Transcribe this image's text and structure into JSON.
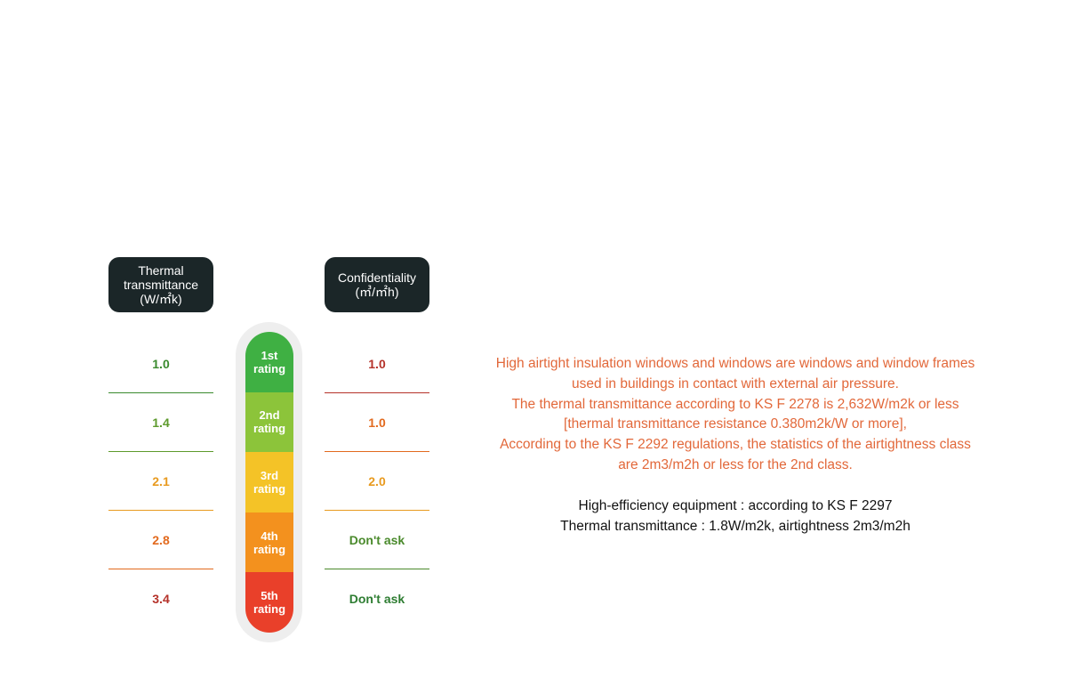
{
  "left_header": [
    "Thermal",
    "transmittance",
    "(W/㎡k)"
  ],
  "right_header": [
    "Confidentiality",
    "(㎥/㎡h)"
  ],
  "left_values": [
    {
      "text": "1.0",
      "color": "#3a8a2e"
    },
    {
      "text": "1.4",
      "color": "#5d9a2c"
    },
    {
      "text": "2.1",
      "color": "#e89a1f"
    },
    {
      "text": "2.8",
      "color": "#e26a1e"
    },
    {
      "text": "3.4",
      "color": "#b5322a"
    }
  ],
  "right_values": [
    {
      "text": "1.0",
      "color": "#b5322a"
    },
    {
      "text": "1.0",
      "color": "#e26a1e"
    },
    {
      "text": "2.0",
      "color": "#e89a1f"
    },
    {
      "text": "Don't ask",
      "color": "#4a8a2c"
    },
    {
      "text": "Don't ask",
      "color": "#2e7d32"
    }
  ],
  "ratings": [
    {
      "line1": "1st",
      "line2": "rating",
      "color": "#3fb043"
    },
    {
      "line1": "2nd",
      "line2": "rating",
      "color": "#8cc43a"
    },
    {
      "line1": "3rd",
      "line2": "rating",
      "color": "#f4c327"
    },
    {
      "line1": "4th",
      "line2": "rating",
      "color": "#f3911e"
    },
    {
      "line1": "5th",
      "line2": "rating",
      "color": "#e9402a"
    }
  ],
  "description": [
    "High airtight insulation windows and windows are windows and window frames",
    "used in buildings in contact with external air pressure.",
    "The thermal transmittance according to KS F 2278 is 2,632W/m2k or less",
    "[thermal transmittance resistance 0.380m2k/W or more],",
    "According to the KS F 2292 regulations, the statistics of the airtightness class",
    "are 2m3/m2h or less for the 2nd class."
  ],
  "equipment": [
    "High-efficiency equipment : according to KS F 2297",
    "Thermal transmittance : 1.8W/m2k, airtightness 2m3/m2h"
  ]
}
